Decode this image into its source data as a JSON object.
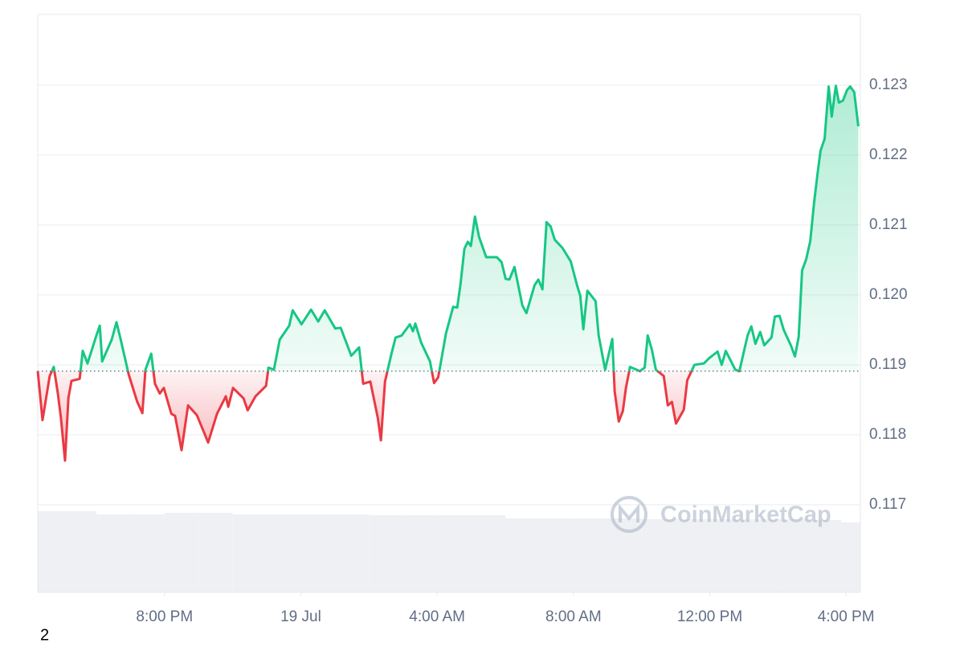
{
  "chart_data": {
    "type": "line",
    "x": [
      -7.72,
      -7.58,
      -7.37,
      -7.25,
      -7.13,
      -7.04,
      -6.92,
      -6.82,
      -6.73,
      -6.49,
      -6.4,
      -6.26,
      -6.0,
      -5.9,
      -5.83,
      -5.55,
      -5.41,
      -5.29,
      -5.05,
      -4.8,
      -4.65,
      -4.56,
      -4.39,
      -4.28,
      -4.14,
      -4.02,
      -3.8,
      -3.69,
      -3.5,
      -3.31,
      -3.05,
      -2.72,
      -2.46,
      -2.2,
      -2.13,
      -1.99,
      -1.68,
      -1.56,
      -1.33,
      -1.02,
      -0.95,
      -0.79,
      -0.62,
      -0.34,
      -0.24,
      0.02,
      0.3,
      0.51,
      0.7,
      1.01,
      1.17,
      1.48,
      1.71,
      1.83,
      2.04,
      2.26,
      2.35,
      2.47,
      2.66,
      2.78,
      2.96,
      3.2,
      3.29,
      3.36,
      3.53,
      3.79,
      3.91,
      4.03,
      4.26,
      4.47,
      4.59,
      4.69,
      4.8,
      4.9,
      4.99,
      5.11,
      5.23,
      5.44,
      5.75,
      5.89,
      6.01,
      6.12,
      6.27,
      6.5,
      6.62,
      6.86,
      6.97,
      7.09,
      7.21,
      7.33,
      7.45,
      7.68,
      7.92,
      8.11,
      8.2,
      8.29,
      8.41,
      8.65,
      8.74,
      8.93,
      9.14,
      9.21,
      9.33,
      9.45,
      9.54,
      9.66,
      9.95,
      10.09,
      10.18,
      10.3,
      10.42,
      10.65,
      10.77,
      10.89,
      11.01,
      11.24,
      11.34,
      11.55,
      11.83,
      11.97,
      12.23,
      12.35,
      12.47,
      12.75,
      12.87,
      13.11,
      13.22,
      13.34,
      13.48,
      13.6,
      13.81,
      13.91,
      14.05,
      14.17,
      14.38,
      14.5,
      14.61,
      14.71,
      14.83,
      14.95,
      15.06,
      15.16,
      15.25,
      15.37,
      15.49,
      15.58,
      15.7,
      15.79,
      15.91,
      16.03,
      16.12,
      16.24,
      16.36
    ],
    "values": [
      0.11891,
      0.11821,
      0.11884,
      0.11897,
      0.11859,
      0.11824,
      0.11763,
      0.11853,
      0.11877,
      0.1188,
      0.1192,
      0.11902,
      0.11942,
      0.11956,
      0.11905,
      0.11936,
      0.11961,
      0.11937,
      0.11886,
      0.11847,
      0.11831,
      0.11893,
      0.11916,
      0.11873,
      0.11859,
      0.11867,
      0.1183,
      0.11827,
      0.11778,
      0.11842,
      0.11828,
      0.11789,
      0.1183,
      0.11855,
      0.1184,
      0.11867,
      0.11852,
      0.11835,
      0.11855,
      0.1187,
      0.11896,
      0.11893,
      0.11936,
      0.11956,
      0.11978,
      0.11958,
      0.11979,
      0.11962,
      0.11978,
      0.11952,
      0.11953,
      0.11913,
      0.11925,
      0.11873,
      0.11876,
      0.11824,
      0.11792,
      0.11876,
      0.11916,
      0.11939,
      0.11942,
      0.11958,
      0.11948,
      0.11959,
      0.11932,
      0.11905,
      0.11874,
      0.11882,
      0.11945,
      0.11983,
      0.11982,
      0.12017,
      0.12066,
      0.12076,
      0.1207,
      0.12112,
      0.12083,
      0.12054,
      0.12054,
      0.12047,
      0.12023,
      0.12022,
      0.1204,
      0.11985,
      0.11974,
      0.12014,
      0.12022,
      0.12008,
      0.12104,
      0.12098,
      0.12079,
      0.12067,
      0.12048,
      0.12013,
      0.11999,
      0.11951,
      0.12006,
      0.11991,
      0.11942,
      0.11893,
      0.11937,
      0.11862,
      0.11819,
      0.11834,
      0.11867,
      0.11897,
      0.11891,
      0.11896,
      0.11942,
      0.11922,
      0.11893,
      0.11884,
      0.11842,
      0.11847,
      0.11816,
      0.11836,
      0.11878,
      0.119,
      0.11902,
      0.11909,
      0.11919,
      0.119,
      0.1192,
      0.11893,
      0.11891,
      0.11942,
      0.11955,
      0.1193,
      0.11947,
      0.11928,
      0.11939,
      0.11969,
      0.1197,
      0.1195,
      0.11928,
      0.11912,
      0.1194,
      0.12035,
      0.12051,
      0.12077,
      0.12131,
      0.12172,
      0.12206,
      0.12223,
      0.12298,
      0.12255,
      0.12299,
      0.12275,
      0.12278,
      0.12293,
      0.12298,
      0.1229,
      0.12241
    ],
    "baseline": 0.11891,
    "color_up": "#16c784",
    "color_down": "#ea3943",
    "volume": {
      "color": "#eef0f3",
      "x": [
        -7.5,
        -6.5,
        -5.5,
        -4.5,
        -3.5,
        -2.5,
        -1.5,
        -0.5,
        0.5,
        1.5,
        2.5,
        3.5,
        4.5,
        5.5,
        6.5,
        7.5,
        8.5,
        9.5,
        10.5,
        11.5,
        12.5,
        13.5,
        14.5,
        15.5,
        16.2
      ],
      "values": [
        101,
        101,
        97,
        97,
        99,
        99,
        97,
        97,
        97,
        97,
        96,
        96,
        96,
        96,
        92,
        92,
        92,
        92,
        91,
        91,
        91,
        91,
        91,
        90,
        87
      ]
    },
    "xlim": [
      -7.72,
      16.42
    ],
    "xticks": [
      {
        "value": -4,
        "label": "8:00 PM"
      },
      {
        "value": 0,
        "label": "19 Jul"
      },
      {
        "value": 4,
        "label": "4:00 AM"
      },
      {
        "value": 8,
        "label": "8:00 AM"
      },
      {
        "value": 12,
        "label": "12:00 PM"
      },
      {
        "value": 16,
        "label": "4:00 PM"
      }
    ],
    "ylim": [
      0.115747,
      0.12401
    ],
    "yticks": [
      0.117,
      0.118,
      0.119,
      0.12,
      0.121,
      0.122,
      0.123
    ],
    "yticks_labels": [
      "0.117",
      "0.118",
      "0.119",
      "0.120",
      "0.121",
      "0.122",
      "0.123"
    ],
    "grid": true,
    "watermark": "CoinMarketCap",
    "footnote": "2"
  }
}
